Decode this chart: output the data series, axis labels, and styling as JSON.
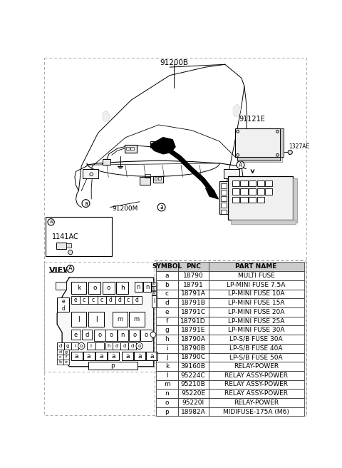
{
  "bg_color": "#ffffff",
  "table_header": [
    "SYMBOL",
    "PNC",
    "PART NAME"
  ],
  "table_rows": [
    [
      "a",
      "18790",
      "MULTI FUSE"
    ],
    [
      "b",
      "18791",
      "LP-MINI FUSE 7.5A"
    ],
    [
      "c",
      "18791A",
      "LP-MINI FUSE 10A"
    ],
    [
      "d",
      "18791B",
      "LP-MINI FUSE 15A"
    ],
    [
      "e",
      "18791C",
      "LP-MINI FUSE 20A"
    ],
    [
      "f",
      "18791D",
      "LP-MINI FUSE 25A"
    ],
    [
      "g",
      "18791E",
      "LP-MINI FUSE 30A"
    ],
    [
      "h",
      "18790A",
      "LP-S/B FUSE 30A"
    ],
    [
      "i",
      "18790B",
      "LP-S/B FUSE 40A"
    ],
    [
      "j",
      "18790C",
      "LP-S/B FUSE 50A"
    ],
    [
      "k",
      "39160B",
      "RELAY-POWER"
    ],
    [
      "l",
      "95224C",
      "RELAY ASSY-POWER"
    ],
    [
      "m",
      "95210B",
      "RELAY ASSY-POWER"
    ],
    [
      "n",
      "95220E",
      "RELAY ASSY-POWER"
    ],
    [
      "o",
      "95220I",
      "RELAY-POWER"
    ],
    [
      "p",
      "18982A",
      "MIDIFUSE-175A (M6)"
    ]
  ],
  "label_91200B": "91200B",
  "label_91200M": "91200M",
  "label_91121E": "91121E",
  "label_1327AE": "1327AE",
  "label_1141AC": "1141AC",
  "text_color": "#000000",
  "table_line_color": "#444444"
}
